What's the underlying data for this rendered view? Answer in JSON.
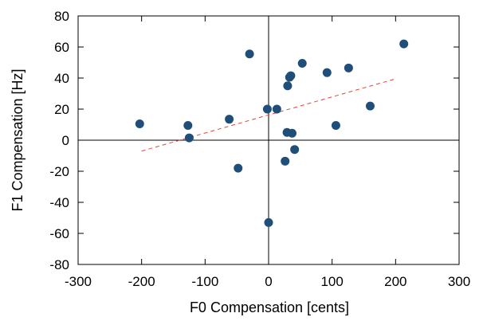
{
  "chart_data": {
    "type": "scatter",
    "title": "",
    "xlabel": "F0 Compensation [cents]",
    "ylabel": "F1 Compensation [Hz]",
    "xlim": [
      -300,
      300
    ],
    "ylim": [
      -80,
      80
    ],
    "xticks": [
      -300,
      -200,
      -100,
      0,
      100,
      200,
      300
    ],
    "yticks": [
      -80,
      -60,
      -40,
      -20,
      0,
      20,
      40,
      60,
      80
    ],
    "xtick_labels": [
      "-300",
      "-200",
      "-100",
      "0",
      "100",
      "200",
      "300"
    ],
    "ytick_labels": [
      "-80",
      "-60",
      "-40",
      "-20",
      "0",
      "20",
      "40",
      "60",
      "80"
    ],
    "grid": false,
    "zero_lines": true,
    "series": [
      {
        "marker_color": "#1f4e79",
        "points": [
          {
            "x": -203,
            "y": 10.5
          },
          {
            "x": -127,
            "y": 9.5
          },
          {
            "x": -125,
            "y": 1.5
          },
          {
            "x": -62,
            "y": 13.5
          },
          {
            "x": -48,
            "y": -18
          },
          {
            "x": -30,
            "y": 55.5
          },
          {
            "x": -2,
            "y": 20
          },
          {
            "x": 0,
            "y": -53
          },
          {
            "x": 13,
            "y": 20
          },
          {
            "x": 26,
            "y": -13.5
          },
          {
            "x": 29,
            "y": 5
          },
          {
            "x": 30,
            "y": 35
          },
          {
            "x": 33,
            "y": 40.5
          },
          {
            "x": 35,
            "y": 41.5
          },
          {
            "x": 37,
            "y": 4.5
          },
          {
            "x": 41,
            "y": -6
          },
          {
            "x": 53,
            "y": 49.5
          },
          {
            "x": 92,
            "y": 43.5
          },
          {
            "x": 106,
            "y": 9.5
          },
          {
            "x": 126,
            "y": 46.5
          },
          {
            "x": 160,
            "y": 22
          },
          {
            "x": 213,
            "y": 62
          }
        ]
      }
    ],
    "trendline": {
      "style": "dashed",
      "color": "#e0463c",
      "x": [
        -200,
        200
      ],
      "y": [
        -7,
        39.5
      ]
    }
  }
}
